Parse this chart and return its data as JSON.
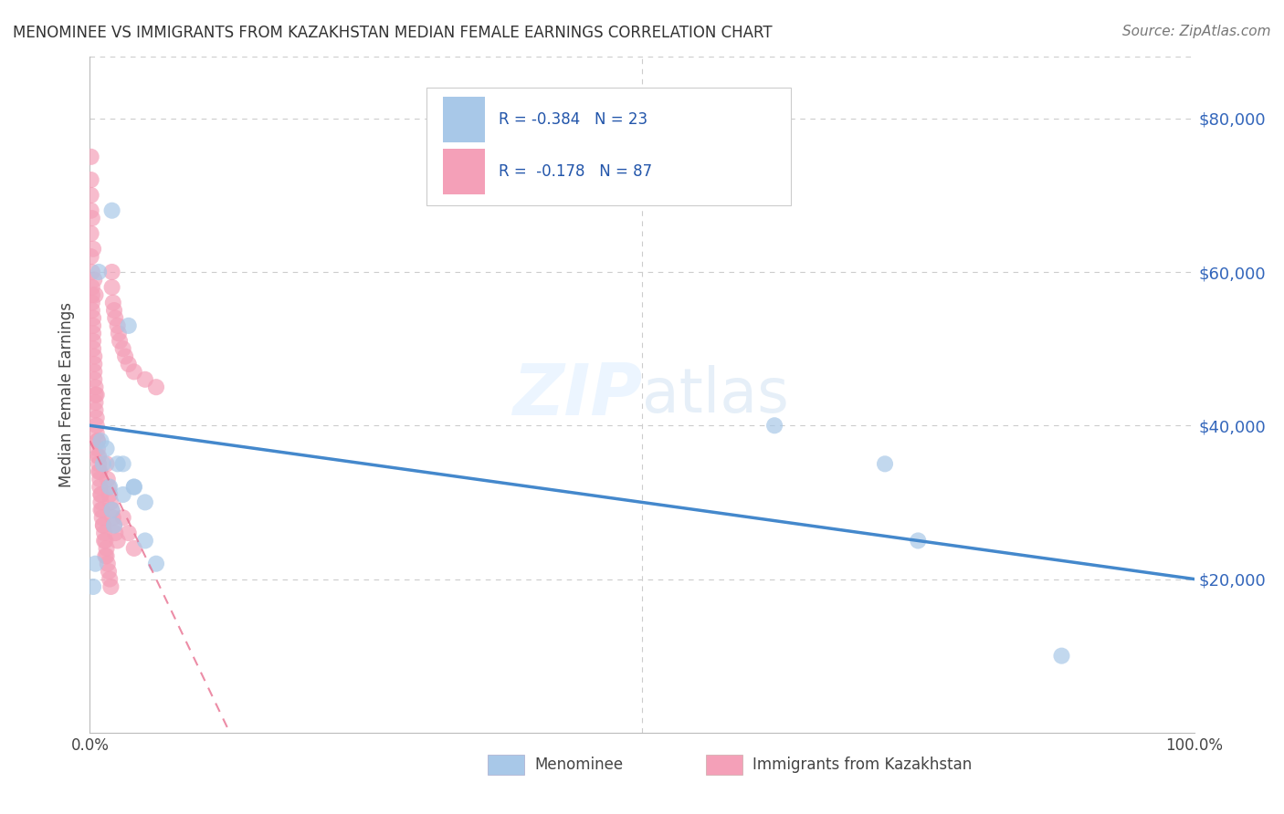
{
  "title": "MENOMINEE VS IMMIGRANTS FROM KAZAKHSTAN MEDIAN FEMALE EARNINGS CORRELATION CHART",
  "source": "Source: ZipAtlas.com",
  "ylabel": "Median Female Earnings",
  "watermark_zip": "ZIP",
  "watermark_atlas": "atlas",
  "blue_color": "#a8c8e8",
  "pink_color": "#f4a0b8",
  "blue_line_color": "#4488cc",
  "pink_line_color": "#e87090",
  "legend_r1": "R = -0.384",
  "legend_n1": "N = 23",
  "legend_r2": "R =  -0.178",
  "legend_n2": "N = 87",
  "menominee_x": [
    0.003,
    0.005,
    0.008,
    0.01,
    0.012,
    0.015,
    0.018,
    0.02,
    0.022,
    0.025,
    0.03,
    0.035,
    0.04,
    0.05,
    0.06,
    0.62,
    0.72,
    0.75,
    0.88,
    0.02,
    0.03,
    0.04,
    0.05
  ],
  "menominee_y": [
    19000,
    22000,
    60000,
    38000,
    35000,
    37000,
    32000,
    29000,
    27000,
    35000,
    35000,
    53000,
    32000,
    30000,
    22000,
    40000,
    35000,
    25000,
    10000,
    68000,
    31000,
    32000,
    25000
  ],
  "kazakhstan_x": [
    0.001,
    0.001,
    0.001,
    0.001,
    0.001,
    0.002,
    0.002,
    0.002,
    0.002,
    0.002,
    0.003,
    0.003,
    0.003,
    0.003,
    0.003,
    0.004,
    0.004,
    0.004,
    0.004,
    0.005,
    0.005,
    0.005,
    0.005,
    0.006,
    0.006,
    0.006,
    0.007,
    0.007,
    0.007,
    0.008,
    0.008,
    0.009,
    0.009,
    0.01,
    0.01,
    0.01,
    0.011,
    0.012,
    0.013,
    0.014,
    0.015,
    0.015,
    0.016,
    0.017,
    0.018,
    0.019,
    0.02,
    0.02,
    0.021,
    0.022,
    0.023,
    0.025,
    0.026,
    0.027,
    0.03,
    0.032,
    0.035,
    0.04,
    0.05,
    0.06,
    0.001,
    0.002,
    0.003,
    0.004,
    0.005,
    0.006,
    0.007,
    0.008,
    0.009,
    0.01,
    0.011,
    0.012,
    0.013,
    0.014,
    0.015,
    0.016,
    0.017,
    0.018,
    0.019,
    0.02,
    0.021,
    0.022,
    0.023,
    0.025,
    0.03,
    0.035,
    0.04
  ],
  "kazakhstan_y": [
    75000,
    72000,
    68000,
    65000,
    62000,
    60000,
    58000,
    57000,
    56000,
    55000,
    54000,
    53000,
    52000,
    51000,
    50000,
    49000,
    48000,
    47000,
    46000,
    45000,
    44000,
    43000,
    42000,
    41000,
    40000,
    39000,
    38000,
    37000,
    36000,
    35000,
    34000,
    33000,
    32000,
    31000,
    30000,
    29000,
    28000,
    27000,
    26000,
    25000,
    24000,
    23000,
    22000,
    21000,
    20000,
    19000,
    60000,
    58000,
    56000,
    55000,
    54000,
    53000,
    52000,
    51000,
    50000,
    49000,
    48000,
    47000,
    46000,
    45000,
    70000,
    67000,
    63000,
    59000,
    57000,
    44000,
    38000,
    36000,
    34000,
    31000,
    29000,
    27000,
    25000,
    23000,
    35000,
    33000,
    32000,
    31000,
    30000,
    29000,
    28000,
    27000,
    26000,
    25000,
    28000,
    26000,
    24000
  ],
  "xlim": [
    0,
    1.0
  ],
  "ylim": [
    0,
    88000
  ],
  "y_ticks": [
    20000,
    40000,
    60000,
    80000
  ],
  "y_tick_labels": [
    "$20,000",
    "$40,000",
    "$60,000",
    "$80,000"
  ]
}
